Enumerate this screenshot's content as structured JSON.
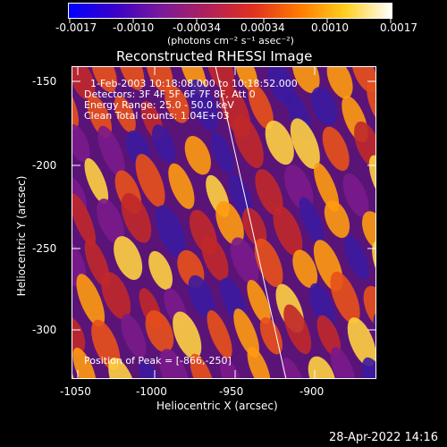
{
  "colorbar": {
    "tick_labels": [
      "-0.0017",
      "-0.0010",
      "-0.00034",
      "0.00034",
      "0.0010",
      "0.0017"
    ],
    "units": "(photons cm⁻² s⁻¹ asec⁻²)",
    "colormap": [
      "#0000ff",
      "#3a00c8",
      "#7a1a9a",
      "#b0205a",
      "#e03020",
      "#ff7a00",
      "#ffd020",
      "#ffffff"
    ]
  },
  "plot": {
    "title": "Reconstructed RHESSI Image",
    "annotations": [
      "1-Feb-2003 10:18:08.000 to 10:18:52.000",
      "Detectors: 3F 4F 5F 6F 7F 8F, Att 0",
      "Energy Range: 25.0 - 50.0 keV",
      "Clean     Total counts: 1.04E+03"
    ],
    "peak_label": "Position of Peak = [-866,-250]",
    "xlabel": "Heliocentric X (arcsec)",
    "ylabel": "Heliocentric Y (arcsec)",
    "x_ticks": [
      "-1050",
      "-1000",
      "-950",
      "-900"
    ],
    "y_ticks": [
      "-150",
      "-200",
      "-250",
      "-300"
    ],
    "xlim": [
      -1052,
      -857
    ],
    "ylim": [
      -330,
      -138
    ]
  },
  "footer": {
    "timestamp": "28-Apr-2022 14:16"
  }
}
